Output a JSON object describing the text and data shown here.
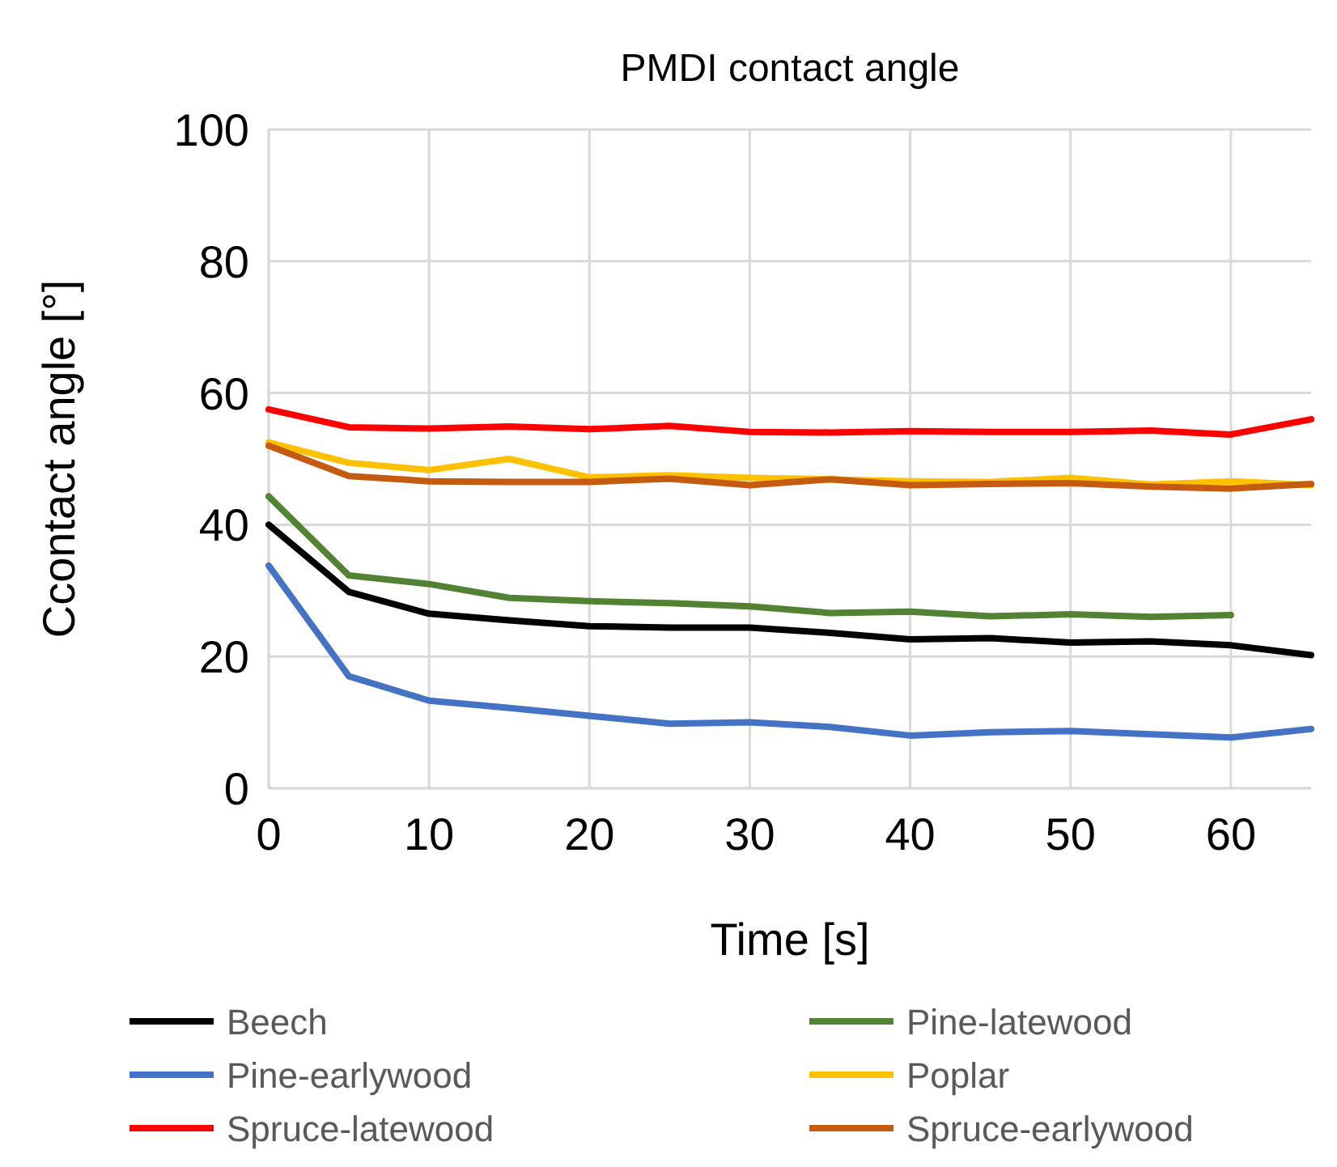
{
  "chart_data": {
    "type": "line",
    "title": "PMDI contact angle",
    "xlabel": "Time [s]",
    "ylabel": "Ccontact angle [°]",
    "x": [
      0,
      5,
      10,
      15,
      20,
      25,
      30,
      35,
      40,
      45,
      50,
      55,
      60,
      65
    ],
    "xlim": [
      0,
      65
    ],
    "xticks": [
      0,
      10,
      20,
      30,
      40,
      50,
      60
    ],
    "ylim": [
      0,
      100
    ],
    "yticks": [
      0,
      20,
      40,
      60,
      80,
      100
    ],
    "grid": true,
    "legend": "bottom",
    "marker": "none",
    "line_style": "solid",
    "series": [
      {
        "name": "Beech",
        "color": "#000000",
        "values": [
          40,
          29.8,
          26.5,
          25.5,
          24.6,
          24.4,
          24.4,
          23.6,
          22.6,
          22.8,
          22.1,
          22.3,
          21.7,
          20.2
        ]
      },
      {
        "name": "Pine-latewood",
        "color": "#548235",
        "values": [
          44.3,
          32.3,
          31,
          28.9,
          28.4,
          28.1,
          27.6,
          26.6,
          26.8,
          26.1,
          26.4,
          26,
          26.3,
          null
        ]
      },
      {
        "name": "Pine-earlywood",
        "color": "#4472c4",
        "values": [
          33.8,
          17,
          13.3,
          12.2,
          11,
          9.8,
          10,
          9.3,
          8,
          8.5,
          8.7,
          8.2,
          7.7,
          9
        ]
      },
      {
        "name": "Poplar",
        "color": "#ffc000",
        "values": [
          52.5,
          49.4,
          48.3,
          50,
          47.2,
          47.5,
          47.1,
          46.9,
          46.6,
          46.5,
          47.1,
          46.1,
          46.6,
          46
        ]
      },
      {
        "name": "Spruce-latewood",
        "color": "#ff0000",
        "values": [
          57.5,
          54.8,
          54.6,
          54.9,
          54.5,
          55,
          54.1,
          54,
          54.2,
          54.1,
          54.1,
          54.3,
          53.7,
          56
        ]
      },
      {
        "name": "Spruce-earlywood",
        "color": "#c55a11",
        "values": [
          52,
          47.4,
          46.6,
          46.5,
          46.5,
          47,
          46,
          46.9,
          46,
          46.2,
          46.3,
          45.8,
          45.5,
          46.2
        ]
      }
    ]
  }
}
